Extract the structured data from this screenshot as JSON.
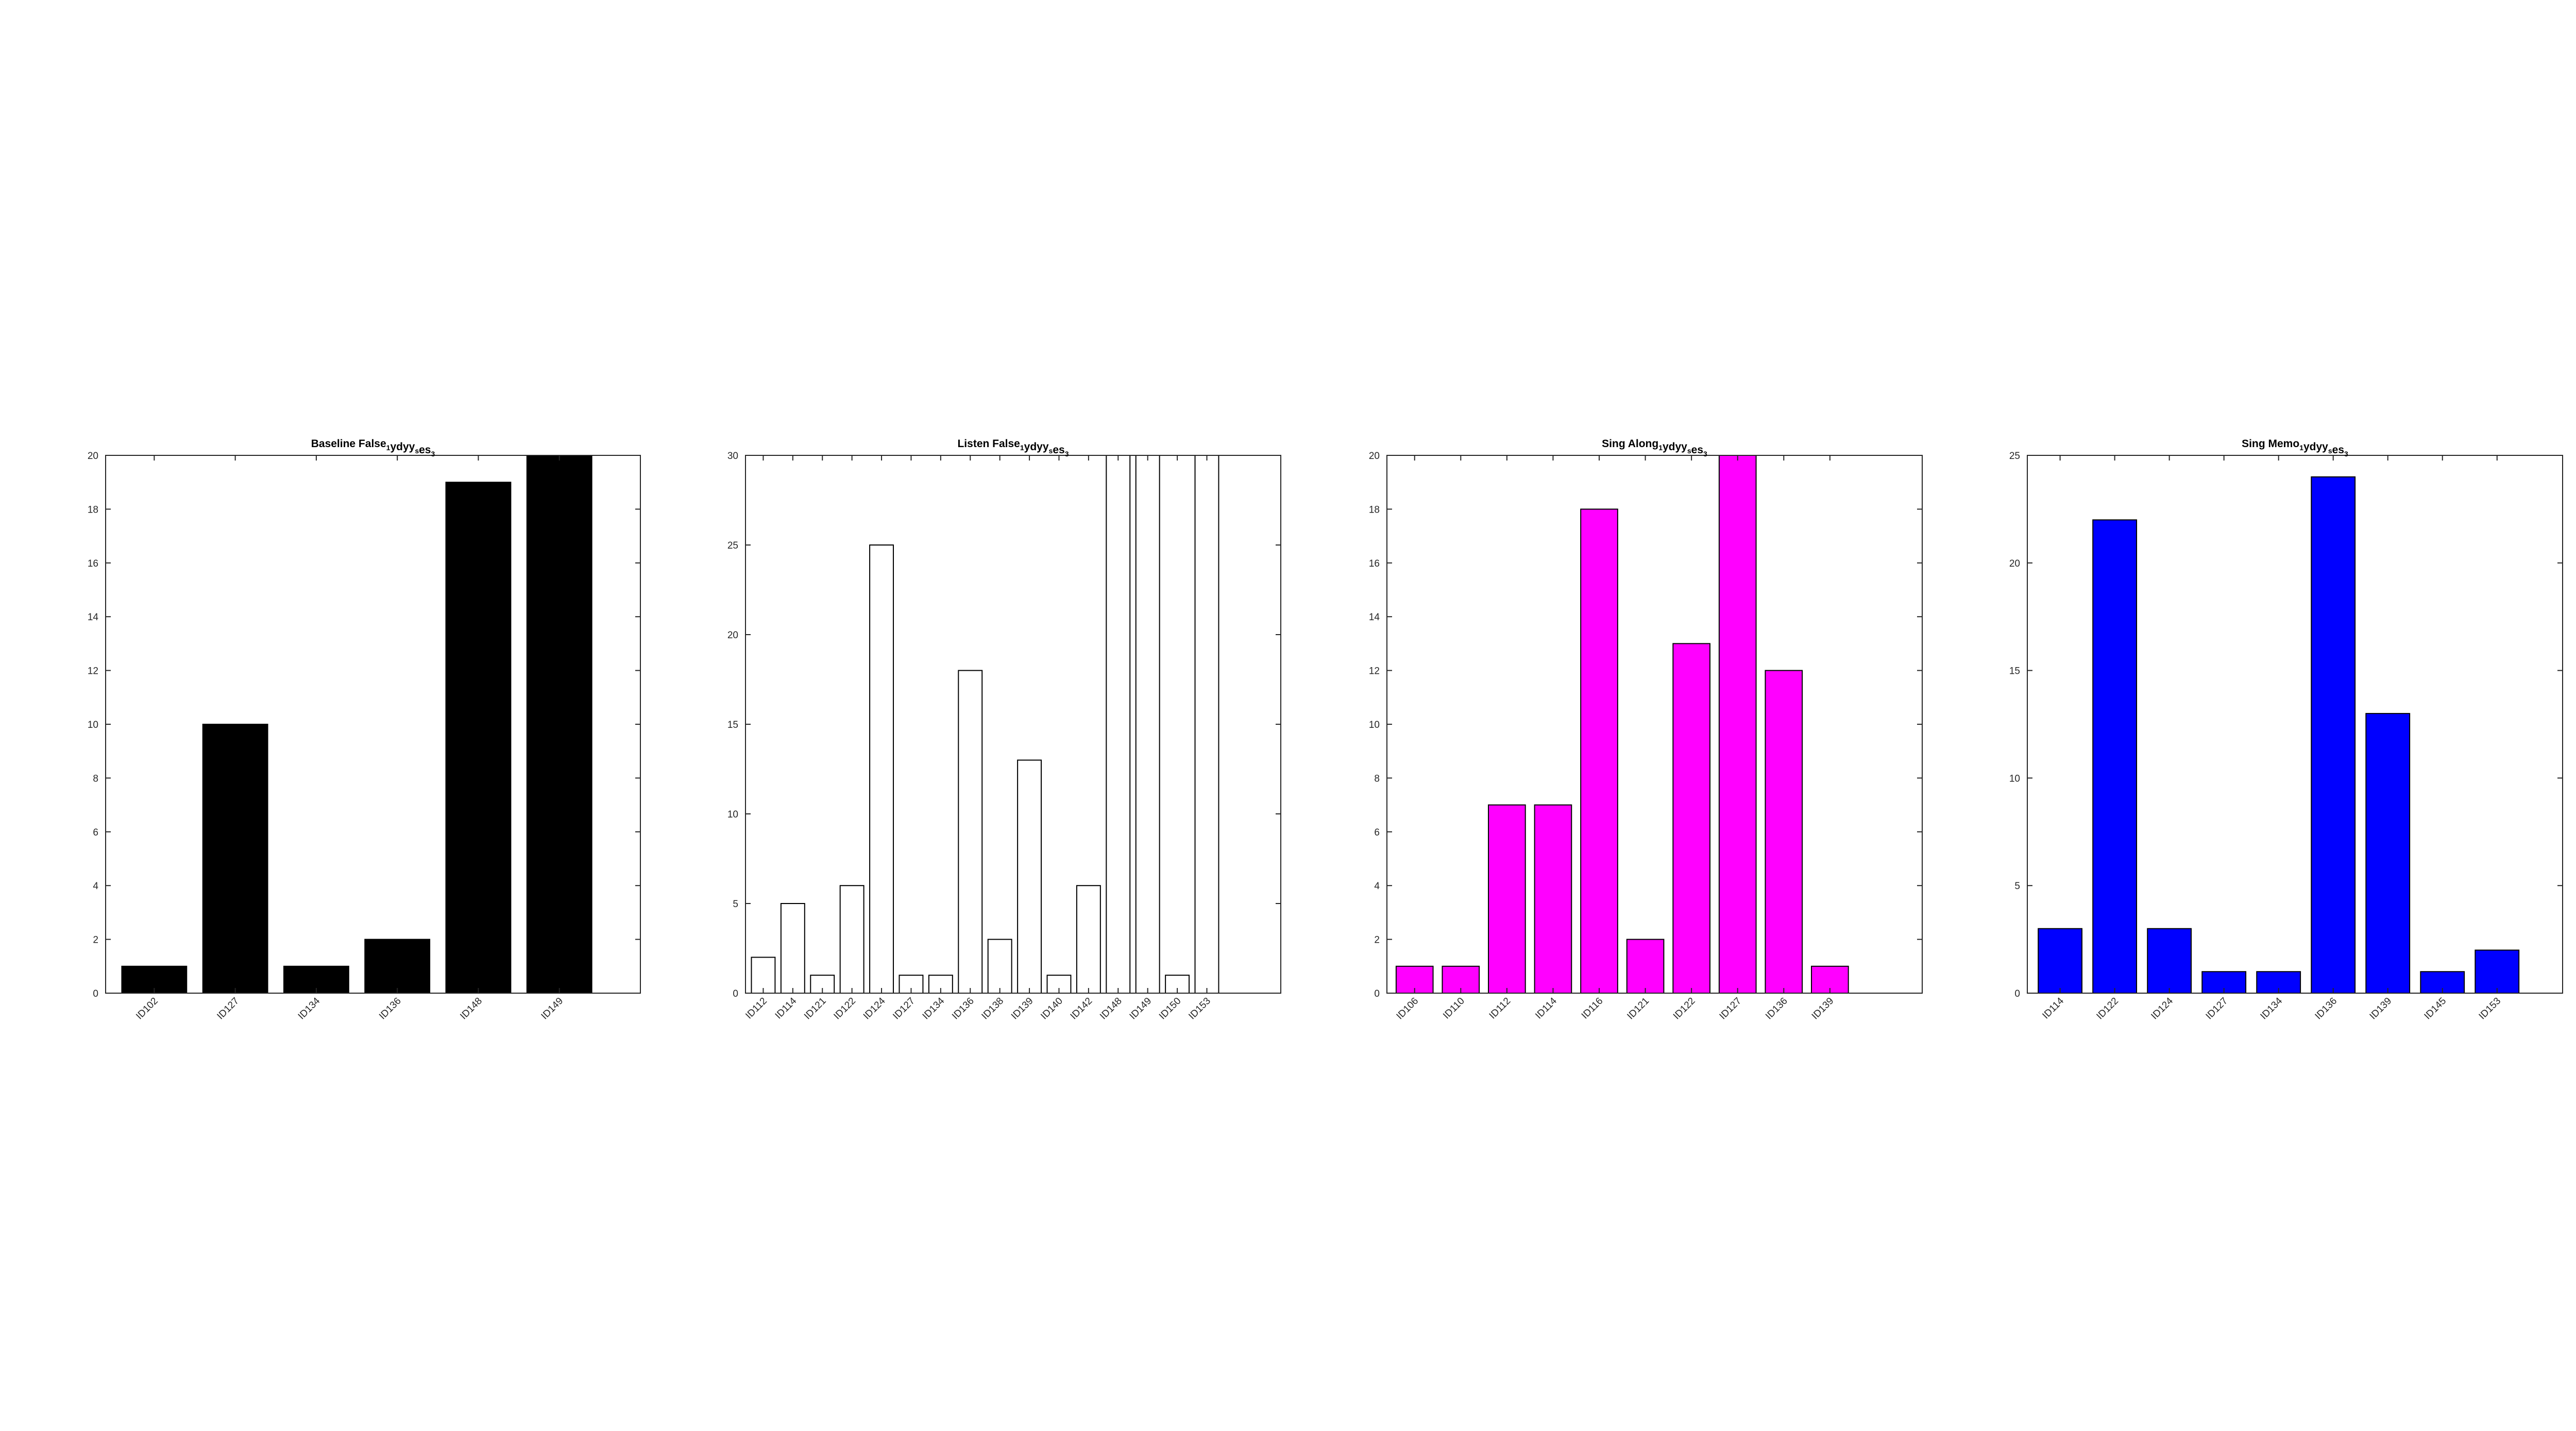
{
  "chart_data": [
    {
      "type": "bar",
      "title": {
        "parts": [
          [
            "Baseline False",
            false
          ],
          [
            "1",
            true
          ],
          [
            "ydyy",
            false
          ],
          [
            "s",
            true
          ],
          [
            "es",
            false
          ],
          [
            "3",
            true
          ]
        ]
      },
      "categories": [
        "ID102",
        "ID127",
        "ID134",
        "ID136",
        "ID148",
        "ID149"
      ],
      "values": [
        1,
        10,
        1,
        2,
        19,
        20
      ],
      "ylim": [
        0,
        20
      ],
      "yticks": [
        0,
        2,
        4,
        6,
        8,
        10,
        12,
        14,
        16,
        18,
        20
      ],
      "xlim": [
        0.4,
        7.0
      ],
      "bar_width": 0.8,
      "bar_color": "#000000",
      "bar_edge": "#000000",
      "grid": false
    },
    {
      "type": "bar",
      "title": {
        "parts": [
          [
            "Listen False",
            false
          ],
          [
            "1",
            true
          ],
          [
            "ydyy",
            false
          ],
          [
            "s",
            true
          ],
          [
            "es",
            false
          ],
          [
            "3",
            true
          ]
        ]
      },
      "categories": [
        "ID112",
        "ID114",
        "ID121",
        "ID122",
        "ID124",
        "ID127",
        "ID134",
        "ID136",
        "ID138",
        "ID139",
        "ID140",
        "ID142",
        "ID148",
        "ID149",
        "ID150",
        "ID153"
      ],
      "values": [
        2,
        5,
        1,
        6,
        25,
        1,
        1,
        18,
        3,
        13,
        1,
        6,
        30,
        30,
        1,
        30
      ],
      "ylim": [
        0,
        30
      ],
      "yticks": [
        0,
        5,
        10,
        15,
        20,
        25,
        30
      ],
      "xlim": [
        0.4,
        18.5
      ],
      "bar_width": 0.8,
      "bar_color": "#ffffff",
      "bar_edge": "#000000",
      "grid": false
    },
    {
      "type": "bar",
      "title": {
        "parts": [
          [
            "Sing Along",
            false
          ],
          [
            "1",
            true
          ],
          [
            "ydyy",
            false
          ],
          [
            "s",
            true
          ],
          [
            "es",
            false
          ],
          [
            "3",
            true
          ]
        ]
      },
      "categories": [
        "ID106",
        "ID110",
        "ID112",
        "ID114",
        "ID116",
        "ID121",
        "ID122",
        "ID127",
        "ID136",
        "ID139"
      ],
      "values": [
        1,
        1,
        7,
        7,
        18,
        2,
        13,
        20,
        12,
        1
      ],
      "ylim": [
        0,
        20
      ],
      "yticks": [
        0,
        2,
        4,
        6,
        8,
        10,
        12,
        14,
        16,
        18,
        20
      ],
      "xlim": [
        0.4,
        12.0
      ],
      "bar_width": 0.8,
      "bar_color": "#ff00ff",
      "bar_edge": "#000000",
      "grid": false
    },
    {
      "type": "bar",
      "title": {
        "parts": [
          [
            "Sing Memo",
            false
          ],
          [
            "1",
            true
          ],
          [
            "ydyy",
            false
          ],
          [
            "s",
            true
          ],
          [
            "es",
            false
          ],
          [
            "3",
            true
          ]
        ]
      },
      "categories": [
        "ID114",
        "ID122",
        "ID124",
        "ID127",
        "ID134",
        "ID136",
        "ID139",
        "ID145",
        "ID153"
      ],
      "values": [
        3,
        22,
        3,
        1,
        1,
        24,
        13,
        1,
        2
      ],
      "ylim": [
        0,
        25
      ],
      "yticks": [
        0,
        5,
        10,
        15,
        20,
        25
      ],
      "xlim": [
        0.4,
        10.2
      ],
      "bar_width": 0.8,
      "bar_color": "#0000ff",
      "bar_edge": "#000000",
      "grid": false
    }
  ]
}
